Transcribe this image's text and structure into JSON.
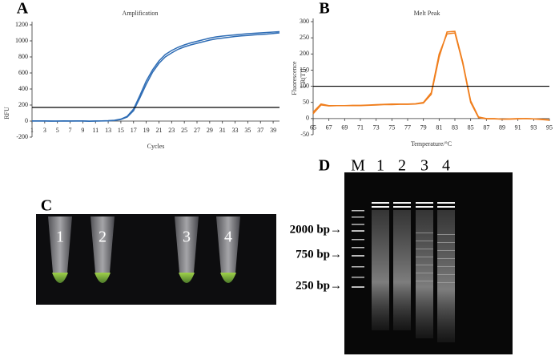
{
  "chart_data": [
    {
      "type": "line",
      "panel_label": "A",
      "title": "Amplification",
      "xlabel": "Cycles",
      "ylabel": [
        "RFU"
      ],
      "x": [
        1,
        2,
        3,
        4,
        5,
        6,
        7,
        8,
        9,
        10,
        11,
        12,
        13,
        14,
        15,
        16,
        17,
        18,
        19,
        20,
        21,
        22,
        23,
        24,
        25,
        26,
        27,
        28,
        29,
        30,
        31,
        32,
        33,
        34,
        35,
        36,
        37,
        38,
        39,
        40
      ],
      "series": [
        {
          "color": "#2f6db5",
          "values": [
            2,
            3,
            2,
            1,
            0,
            2,
            1,
            3,
            2,
            0,
            1,
            2,
            5,
            10,
            25,
            60,
            150,
            320,
            500,
            640,
            750,
            830,
            880,
            920,
            950,
            975,
            995,
            1015,
            1035,
            1050,
            1060,
            1068,
            1075,
            1082,
            1090,
            1095,
            1100,
            1105,
            1110,
            1115
          ]
        },
        {
          "color": "#2f6db5",
          "values": [
            0,
            1,
            0,
            -1,
            0,
            1,
            0,
            1,
            0,
            -2,
            0,
            1,
            3,
            8,
            20,
            50,
            130,
            290,
            460,
            610,
            720,
            800,
            850,
            895,
            925,
            950,
            970,
            990,
            1010,
            1025,
            1035,
            1045,
            1055,
            1062,
            1068,
            1075,
            1080,
            1085,
            1092,
            1100
          ]
        }
      ],
      "threshold": 170,
      "xlim": [
        1,
        40
      ],
      "xticks": [
        1,
        3,
        5,
        7,
        9,
        11,
        13,
        15,
        17,
        19,
        21,
        23,
        25,
        27,
        29,
        31,
        33,
        35,
        37,
        39
      ],
      "ylim": [
        -200,
        1200
      ],
      "yticks": [
        -200,
        0,
        200,
        400,
        600,
        800,
        1000,
        1200
      ]
    },
    {
      "type": "line",
      "panel_label": "B",
      "title": "Melt Peak",
      "xlabel": "Temperature/°C",
      "ylabel": [
        "Fluorescence",
        "[-R(T)]"
      ],
      "x": [
        65,
        66,
        67,
        68,
        69,
        70,
        71,
        72,
        73,
        74,
        75,
        76,
        77,
        78,
        79,
        80,
        81,
        82,
        83,
        84,
        85,
        86,
        87,
        88,
        89,
        90,
        91,
        92,
        93,
        94,
        95
      ],
      "series": [
        {
          "color": "#f07f1e",
          "values": [
            20,
            45,
            40,
            40,
            40,
            40,
            40,
            41,
            42,
            43,
            43,
            44,
            44,
            45,
            48,
            75,
            190,
            268,
            270,
            175,
            55,
            5,
            0,
            0,
            -2,
            -2,
            -1,
            0,
            -1,
            -3,
            -5
          ]
        },
        {
          "color": "#f07f1e",
          "values": [
            15,
            42,
            39,
            40,
            40,
            41,
            41,
            42,
            43,
            44,
            45,
            45,
            45,
            46,
            50,
            80,
            200,
            262,
            265,
            170,
            50,
            3,
            -1,
            -1,
            -2,
            -1,
            0,
            0,
            -1,
            -2,
            -4
          ]
        }
      ],
      "threshold": 100,
      "xlim": [
        65,
        95
      ],
      "xticks": [
        65,
        67,
        69,
        71,
        73,
        75,
        77,
        79,
        81,
        83,
        85,
        87,
        89,
        91,
        93,
        95
      ],
      "ylim": [
        -50,
        300
      ],
      "yticks": [
        -50,
        0,
        50,
        100,
        150,
        200,
        250,
        300
      ]
    }
  ],
  "panel_c": {
    "label": "C",
    "tubes": [
      "1",
      "2",
      "3",
      "4"
    ]
  },
  "panel_d": {
    "label": "D",
    "lanes": [
      "M",
      "1",
      "2",
      "3",
      "4"
    ],
    "markers": [
      "2000 bp→",
      "750 bp→",
      "250 bp→"
    ]
  }
}
